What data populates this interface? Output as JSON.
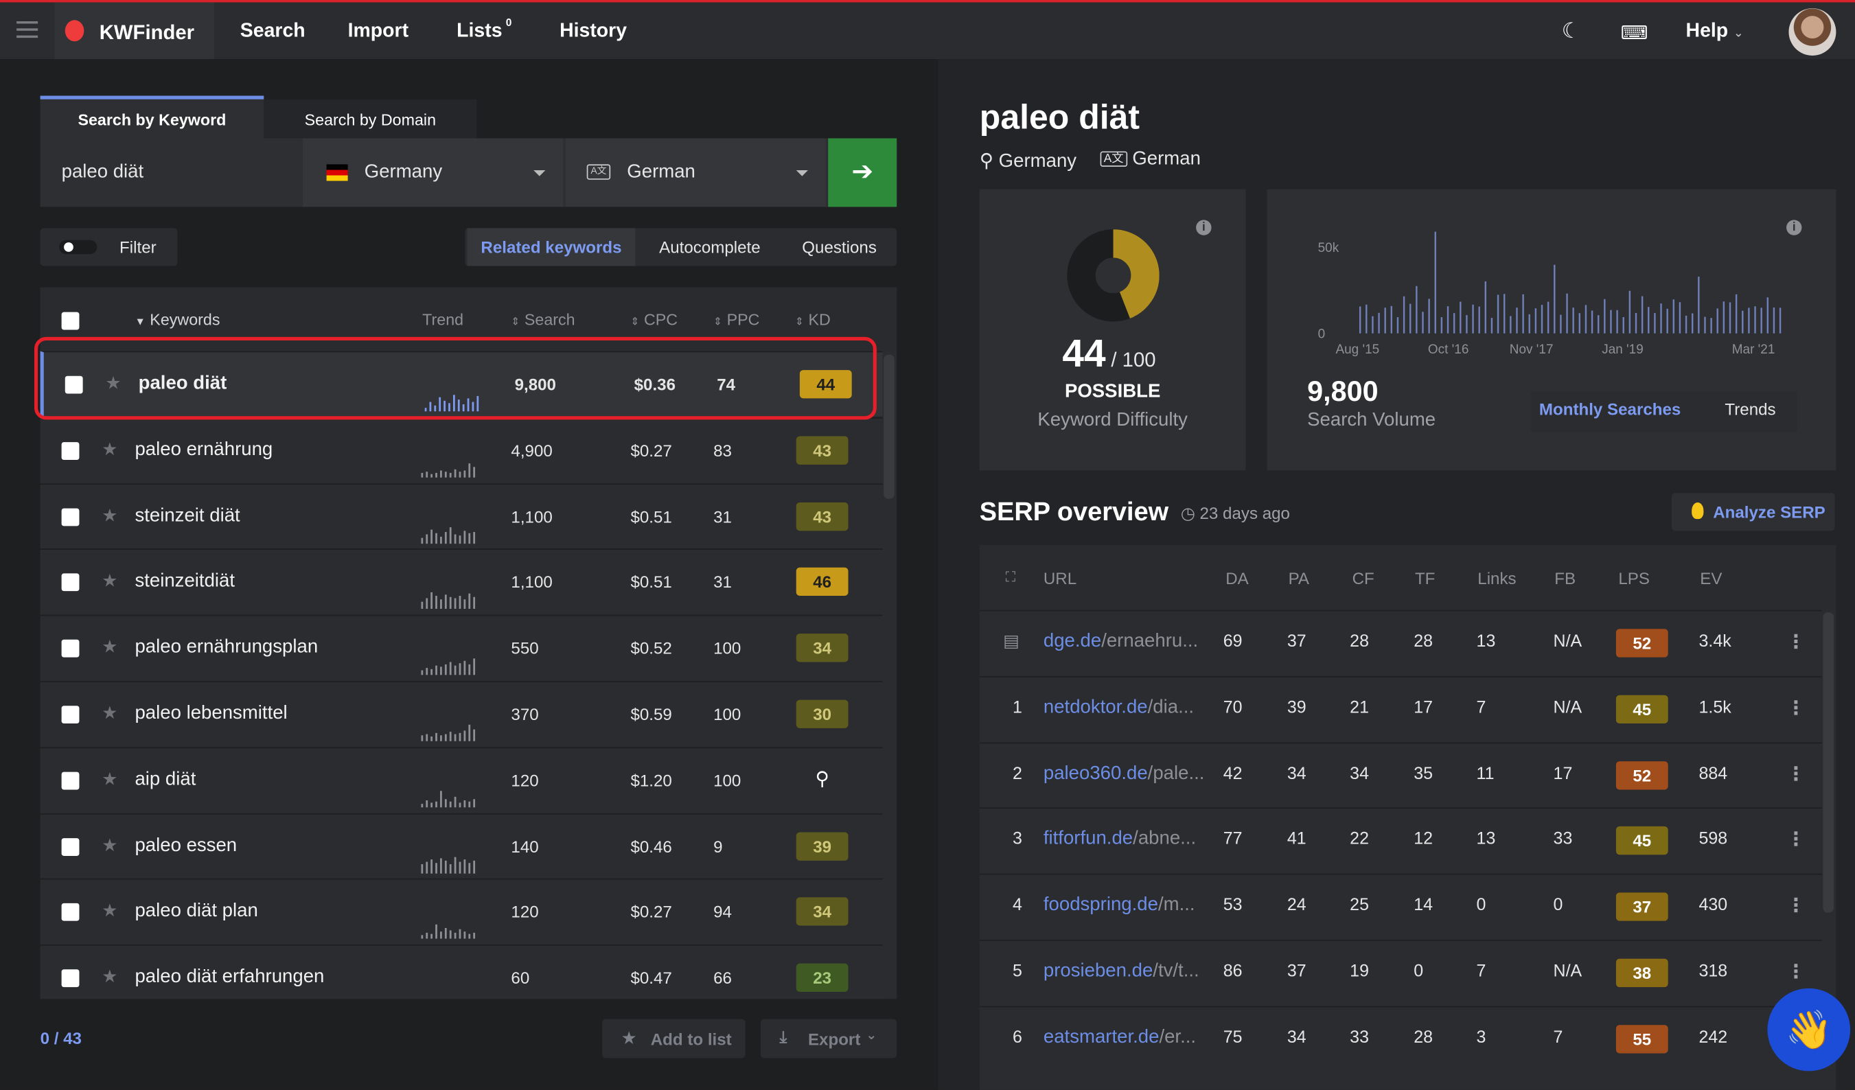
{
  "nav": {
    "brand": "KWFinder",
    "items": [
      "Search",
      "Import",
      "Lists",
      "History"
    ],
    "lists_badge": "0",
    "help": "Help"
  },
  "search": {
    "tabs": [
      "Search by Keyword",
      "Search by Domain"
    ],
    "keyword": "paleo diät",
    "country": "Germany",
    "language": "German",
    "filter_label": "Filter",
    "modes": [
      "Related keywords",
      "Autocomplete",
      "Questions"
    ],
    "active_mode": "Related keywords"
  },
  "table": {
    "headers": {
      "keywords": "Keywords",
      "trend": "Trend",
      "search": "Search",
      "cpc": "CPC",
      "ppc": "PPC",
      "kd": "KD"
    },
    "rows": [
      {
        "keyword": "paleo diät",
        "search": "9,800",
        "cpc": "$0.36",
        "ppc": "74",
        "kd": "44",
        "selected": true
      },
      {
        "keyword": "paleo ernährung",
        "search": "4,900",
        "cpc": "$0.27",
        "ppc": "83",
        "kd": "43"
      },
      {
        "keyword": "steinzeit diät",
        "search": "1,100",
        "cpc": "$0.51",
        "ppc": "31",
        "kd": "43"
      },
      {
        "keyword": "steinzeitdiät",
        "search": "1,100",
        "cpc": "$0.51",
        "ppc": "31",
        "kd": "46"
      },
      {
        "keyword": "paleo ernährungsplan",
        "search": "550",
        "cpc": "$0.52",
        "ppc": "100",
        "kd": "34"
      },
      {
        "keyword": "paleo lebensmittel",
        "search": "370",
        "cpc": "$0.59",
        "ppc": "100",
        "kd": "30"
      },
      {
        "keyword": "aip diät",
        "search": "120",
        "cpc": "$1.20",
        "ppc": "100",
        "kd": ""
      },
      {
        "keyword": "paleo essen",
        "search": "140",
        "cpc": "$0.46",
        "ppc": "9",
        "kd": "39"
      },
      {
        "keyword": "paleo diät plan",
        "search": "120",
        "cpc": "$0.27",
        "ppc": "94",
        "kd": "34"
      },
      {
        "keyword": "paleo diät erfahrungen",
        "search": "60",
        "cpc": "$0.47",
        "ppc": "66",
        "kd": "23"
      }
    ],
    "count": "0 / 43",
    "add_to_list": "Add to list",
    "export": "Export"
  },
  "detail": {
    "keyword": "paleo diät",
    "location": "Germany",
    "language": "German",
    "kd_value": "44",
    "kd_max": "/ 100",
    "kd_level": "POSSIBLE",
    "kd_label": "Keyword Difficulty",
    "kd_fraction": 0.44,
    "volume": "9,800",
    "volume_label": "Search Volume",
    "vol_tabs": [
      "Monthly Searches",
      "Trends"
    ],
    "chart_y_labels": [
      "50k",
      "0"
    ],
    "chart_x_labels": [
      "Aug '15",
      "Oct '16",
      "Nov '17",
      "Jan '19",
      "Mar '21"
    ]
  },
  "serp": {
    "title": "SERP overview",
    "ago": "23 days ago",
    "analyze": "Analyze SERP",
    "headers": [
      "URL",
      "DA",
      "PA",
      "CF",
      "TF",
      "Links",
      "FB",
      "LPS",
      "EV"
    ],
    "rows": [
      {
        "rank": "",
        "domain": "dge.de",
        "path": "/ernaehru...",
        "da": "69",
        "pa": "37",
        "cf": "28",
        "tf": "28",
        "links": "13",
        "fb": "N/A",
        "lps": "52",
        "ev": "3.4k"
      },
      {
        "rank": "1",
        "domain": "netdoktor.de",
        "path": "/dia...",
        "da": "70",
        "pa": "39",
        "cf": "21",
        "tf": "17",
        "links": "7",
        "fb": "N/A",
        "lps": "45",
        "ev": "1.5k"
      },
      {
        "rank": "2",
        "domain": "paleo360.de",
        "path": "/pale...",
        "da": "42",
        "pa": "34",
        "cf": "34",
        "tf": "35",
        "links": "11",
        "fb": "17",
        "lps": "52",
        "ev": "884"
      },
      {
        "rank": "3",
        "domain": "fitforfun.de",
        "path": "/abne...",
        "da": "77",
        "pa": "41",
        "cf": "22",
        "tf": "12",
        "links": "13",
        "fb": "33",
        "lps": "45",
        "ev": "598"
      },
      {
        "rank": "4",
        "domain": "foodspring.de",
        "path": "/m...",
        "da": "53",
        "pa": "24",
        "cf": "25",
        "tf": "14",
        "links": "0",
        "fb": "0",
        "lps": "37",
        "ev": "430"
      },
      {
        "rank": "5",
        "domain": "prosieben.de",
        "path": "/tv/t...",
        "da": "86",
        "pa": "37",
        "cf": "19",
        "tf": "0",
        "links": "7",
        "fb": "N/A",
        "lps": "38",
        "ev": "318"
      },
      {
        "rank": "6",
        "domain": "eatsmarter.de",
        "path": "/er...",
        "da": "75",
        "pa": "34",
        "cf": "33",
        "tf": "28",
        "links": "3",
        "fb": "7",
        "lps": "55",
        "ev": "242"
      }
    ]
  },
  "colors": {
    "accent": "#6d8ee6",
    "go": "#2d8a3a",
    "highlight": "#e5202a",
    "kd_gold": "#c79a19",
    "kd_olive": "#7a7a1f",
    "kd_green": "#4c6a2a"
  }
}
